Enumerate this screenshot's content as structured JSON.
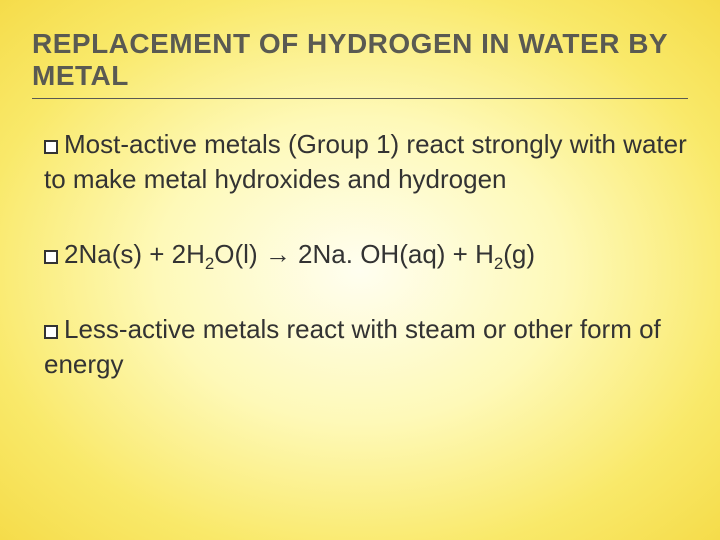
{
  "title": "REPLACEMENT OF HYDROGEN IN WATER BY METAL",
  "bullets": [
    {
      "parts": [
        {
          "t": "Most-active metals (Group 1) react strongly with water to make metal hydroxides and hydrogen"
        }
      ]
    },
    {
      "parts": [
        {
          "t": "2Na(s) + 2H"
        },
        {
          "t": "2",
          "sub": true
        },
        {
          "t": "O(l) → 2Na. OH(aq) + H"
        },
        {
          "t": "2",
          "sub": true
        },
        {
          "t": "(g)"
        }
      ]
    },
    {
      "parts": [
        {
          "t": "Less-active metals react with steam or other form of energy"
        }
      ]
    }
  ],
  "colors": {
    "bg_inner": "#fffef0",
    "bg_mid": "#fef9b8",
    "bg_outer": "#f5dc4a",
    "title_color": "#5a5a52",
    "text_color": "#333333",
    "underline_color": "#5a5a52"
  },
  "typography": {
    "title_fontsize": 28,
    "body_fontsize": 26,
    "title_weight": "bold",
    "font_family": "Arial"
  }
}
